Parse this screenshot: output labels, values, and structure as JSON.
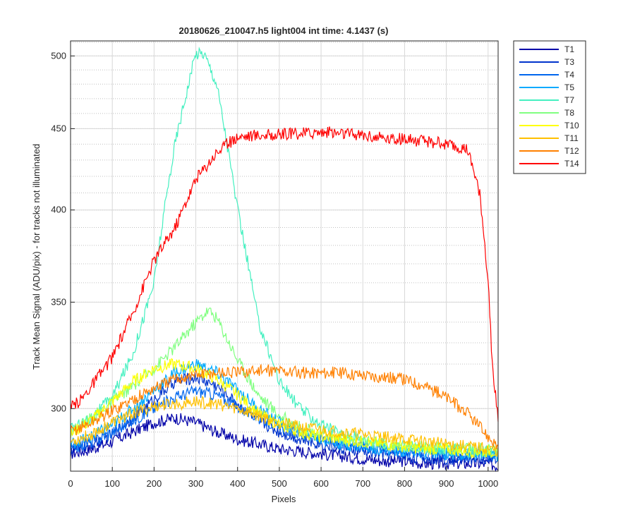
{
  "chart_data": {
    "type": "line",
    "title": "20180626_210047.h5  light004   int time: 4.1437 (s)",
    "xlabel": "Pixels",
    "ylabel": "Track Mean Signal (ADU/pix) - for tracks not illuminated",
    "xlim": [
      0,
      1024
    ],
    "ylim_fraction": "log scale, visible range ~275 to 510",
    "ylim": [
      274,
      511
    ],
    "y_scale": "log",
    "x_ticks": [
      0,
      100,
      200,
      300,
      400,
      500,
      600,
      700,
      800,
      900,
      1000
    ],
    "y_ticks": [
      300,
      350,
      400,
      450,
      500
    ],
    "grid": true,
    "legend_position": "outside-top-right",
    "series": [
      {
        "name": "T1",
        "color": "#0000a8",
        "x": [
          0,
          50,
          100,
          150,
          200,
          250,
          300,
          350,
          400,
          450,
          500,
          550,
          600,
          650,
          700,
          750,
          800,
          850,
          900,
          950,
          1000,
          1024
        ],
        "y": [
          281,
          283,
          286,
          290,
          294,
          296,
          294,
          290,
          287,
          285,
          283,
          282,
          281,
          280,
          279,
          278,
          278,
          277,
          277,
          277,
          277,
          276
        ]
      },
      {
        "name": "T3",
        "color": "#0033cc",
        "x": [
          0,
          50,
          100,
          150,
          200,
          250,
          300,
          350,
          400,
          450,
          500,
          550,
          600,
          650,
          700,
          750,
          800,
          850,
          900,
          950,
          1000,
          1024
        ],
        "y": [
          282,
          285,
          289,
          296,
          304,
          312,
          314,
          310,
          302,
          295,
          290,
          287,
          285,
          283,
          282,
          281,
          280,
          279,
          279,
          279,
          279,
          278
        ]
      },
      {
        "name": "T4",
        "color": "#0066ee",
        "x": [
          0,
          50,
          100,
          150,
          200,
          250,
          300,
          350,
          400,
          450,
          500,
          550,
          600,
          650,
          700,
          750,
          800,
          850,
          900,
          950,
          1000,
          1024
        ],
        "y": [
          283,
          286,
          290,
          295,
          300,
          305,
          308,
          306,
          301,
          296,
          292,
          289,
          287,
          285,
          284,
          283,
          282,
          281,
          281,
          280,
          280,
          280
        ]
      },
      {
        "name": "T5",
        "color": "#00aaff",
        "x": [
          0,
          50,
          100,
          150,
          200,
          250,
          300,
          350,
          400,
          450,
          500,
          550,
          600,
          650,
          700,
          750,
          800,
          850,
          900,
          950,
          1000,
          1024
        ],
        "y": [
          285,
          288,
          293,
          300,
          308,
          316,
          320,
          316,
          308,
          300,
          294,
          290,
          287,
          285,
          284,
          283,
          282,
          282,
          281,
          281,
          281,
          280
        ]
      },
      {
        "name": "T7",
        "color": "#44f0c0",
        "x": [
          0,
          50,
          100,
          150,
          200,
          250,
          300,
          320,
          350,
          400,
          450,
          500,
          550,
          600,
          650,
          700,
          750,
          800,
          850,
          900,
          950,
          1000,
          1024
        ],
        "y": [
          291,
          296,
          305,
          325,
          360,
          440,
          502,
          502,
          480,
          400,
          340,
          312,
          300,
          293,
          289,
          287,
          285,
          284,
          283,
          283,
          282,
          282,
          281
        ]
      },
      {
        "name": "T8",
        "color": "#80ff80",
        "x": [
          0,
          50,
          100,
          150,
          200,
          250,
          300,
          330,
          350,
          400,
          450,
          500,
          550,
          600,
          650,
          700,
          750,
          800,
          850,
          900,
          950,
          1000,
          1024
        ],
        "y": [
          290,
          296,
          303,
          310,
          318,
          328,
          340,
          346,
          342,
          322,
          306,
          297,
          292,
          289,
          287,
          286,
          285,
          284,
          284,
          283,
          283,
          283,
          282
        ]
      },
      {
        "name": "T10",
        "color": "#ffff00",
        "x": [
          0,
          50,
          100,
          150,
          200,
          250,
          300,
          350,
          400,
          450,
          500,
          550,
          600,
          650,
          700,
          750,
          800,
          850,
          900,
          950,
          1000,
          1024
        ],
        "y": [
          289,
          295,
          303,
          312,
          318,
          320,
          318,
          313,
          306,
          298,
          293,
          290,
          288,
          287,
          286,
          285,
          284,
          283,
          283,
          282,
          282,
          282
        ]
      },
      {
        "name": "T11",
        "color": "#ffc000",
        "x": [
          0,
          50,
          100,
          150,
          200,
          250,
          300,
          350,
          400,
          450,
          500,
          550,
          600,
          650,
          700,
          750,
          800,
          850,
          900,
          950,
          1000,
          1024
        ],
        "y": [
          286,
          289,
          294,
          298,
          301,
          302,
          303,
          302,
          300,
          297,
          294,
          292,
          291,
          290,
          289,
          288,
          287,
          286,
          285,
          284,
          283,
          282
        ]
      },
      {
        "name": "T12",
        "color": "#ff8000",
        "x": [
          0,
          50,
          100,
          150,
          200,
          250,
          300,
          350,
          400,
          450,
          500,
          550,
          600,
          650,
          700,
          750,
          800,
          850,
          900,
          950,
          1000,
          1024
        ],
        "y": [
          290,
          294,
          299,
          304,
          309,
          313,
          315,
          316,
          316,
          317,
          317,
          316,
          316,
          316,
          315,
          314,
          313,
          310,
          305,
          298,
          288,
          284
        ]
      },
      {
        "name": "T14",
        "color": "#ff0000",
        "x": [
          0,
          25,
          50,
          100,
          150,
          200,
          250,
          300,
          350,
          400,
          450,
          500,
          550,
          600,
          650,
          700,
          750,
          800,
          850,
          900,
          950,
          980,
          1000,
          1010,
          1024
        ],
        "y": [
          300,
          304,
          310,
          323,
          345,
          372,
          390,
          418,
          435,
          445,
          446,
          446,
          447,
          448,
          447,
          446,
          444,
          443,
          442,
          440,
          436,
          410,
          360,
          320,
          295
        ]
      }
    ]
  }
}
